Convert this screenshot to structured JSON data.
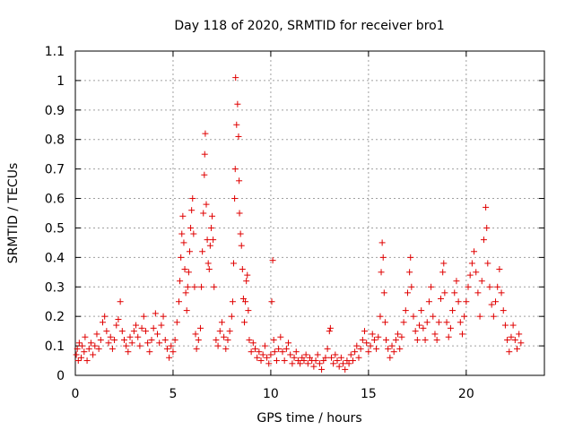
{
  "chart_data": {
    "type": "scatter",
    "title": "Day 118 of 2020, SRMTID for receiver bro1",
    "xlabel": "GPS time / hours",
    "ylabel": "SRMTID / TECUs",
    "xlim": [
      0,
      24
    ],
    "ylim": [
      0,
      1.1
    ],
    "xticks": [
      0,
      5,
      10,
      15,
      20
    ],
    "yticks": [
      0,
      0.1,
      0.2,
      0.3,
      0.4,
      0.5,
      0.6,
      0.7,
      0.8,
      0.9,
      1,
      1.1
    ],
    "grid": true,
    "marker": "+",
    "color": "#e00000",
    "series": [
      {
        "name": "SRMTID",
        "points": [
          [
            0.05,
            0.07
          ],
          [
            0.1,
            0.09
          ],
          [
            0.15,
            0.05
          ],
          [
            0.2,
            0.11
          ],
          [
            0.3,
            0.06
          ],
          [
            0.35,
            0.1
          ],
          [
            0.45,
            0.08
          ],
          [
            0.5,
            0.13
          ],
          [
            0.6,
            0.05
          ],
          [
            0.7,
            0.09
          ],
          [
            0.8,
            0.11
          ],
          [
            0.9,
            0.07
          ],
          [
            1.0,
            0.1
          ],
          [
            1.1,
            0.14
          ],
          [
            1.2,
            0.09
          ],
          [
            1.3,
            0.12
          ],
          [
            1.4,
            0.18
          ],
          [
            1.5,
            0.2
          ],
          [
            1.6,
            0.15
          ],
          [
            1.7,
            0.11
          ],
          [
            1.8,
            0.13
          ],
          [
            1.9,
            0.09
          ],
          [
            2.0,
            0.12
          ],
          [
            2.1,
            0.17
          ],
          [
            2.2,
            0.19
          ],
          [
            2.3,
            0.25
          ],
          [
            2.4,
            0.15
          ],
          [
            2.5,
            0.12
          ],
          [
            2.6,
            0.1
          ],
          [
            2.7,
            0.08
          ],
          [
            2.8,
            0.13
          ],
          [
            2.9,
            0.11
          ],
          [
            3.0,
            0.15
          ],
          [
            3.1,
            0.17
          ],
          [
            3.2,
            0.13
          ],
          [
            3.3,
            0.1
          ],
          [
            3.4,
            0.16
          ],
          [
            3.5,
            0.2
          ],
          [
            3.6,
            0.15
          ],
          [
            3.7,
            0.11
          ],
          [
            3.8,
            0.08
          ],
          [
            3.9,
            0.12
          ],
          [
            4.0,
            0.16
          ],
          [
            4.1,
            0.21
          ],
          [
            4.2,
            0.14
          ],
          [
            4.3,
            0.11
          ],
          [
            4.4,
            0.17
          ],
          [
            4.5,
            0.2
          ],
          [
            4.6,
            0.12
          ],
          [
            4.7,
            0.09
          ],
          [
            4.8,
            0.06
          ],
          [
            4.9,
            0.1
          ],
          [
            5.0,
            0.08
          ],
          [
            5.1,
            0.12
          ],
          [
            5.2,
            0.18
          ],
          [
            5.3,
            0.25
          ],
          [
            5.35,
            0.32
          ],
          [
            5.4,
            0.4
          ],
          [
            5.45,
            0.48
          ],
          [
            5.5,
            0.54
          ],
          [
            5.55,
            0.45
          ],
          [
            5.6,
            0.36
          ],
          [
            5.65,
            0.28
          ],
          [
            5.7,
            0.22
          ],
          [
            5.75,
            0.3
          ],
          [
            5.8,
            0.35
          ],
          [
            5.85,
            0.42
          ],
          [
            5.9,
            0.5
          ],
          [
            5.95,
            0.56
          ],
          [
            6.0,
            0.6
          ],
          [
            6.05,
            0.48
          ],
          [
            6.1,
            0.3
          ],
          [
            6.15,
            0.14
          ],
          [
            6.2,
            0.09
          ],
          [
            6.3,
            0.12
          ],
          [
            6.4,
            0.16
          ],
          [
            6.45,
            0.3
          ],
          [
            6.5,
            0.42
          ],
          [
            6.55,
            0.55
          ],
          [
            6.6,
            0.68
          ],
          [
            6.62,
            0.75
          ],
          [
            6.65,
            0.82
          ],
          [
            6.7,
            0.58
          ],
          [
            6.75,
            0.46
          ],
          [
            6.8,
            0.38
          ],
          [
            6.85,
            0.36
          ],
          [
            6.9,
            0.44
          ],
          [
            6.95,
            0.5
          ],
          [
            7.0,
            0.54
          ],
          [
            7.05,
            0.46
          ],
          [
            7.1,
            0.3
          ],
          [
            7.2,
            0.12
          ],
          [
            7.3,
            0.1
          ],
          [
            7.4,
            0.15
          ],
          [
            7.5,
            0.18
          ],
          [
            7.6,
            0.13
          ],
          [
            7.7,
            0.09
          ],
          [
            7.8,
            0.12
          ],
          [
            7.9,
            0.15
          ],
          [
            8.0,
            0.2
          ],
          [
            8.05,
            0.25
          ],
          [
            8.1,
            0.38
          ],
          [
            8.15,
            0.6
          ],
          [
            8.18,
            0.7
          ],
          [
            8.2,
            1.01
          ],
          [
            8.25,
            0.85
          ],
          [
            8.3,
            0.92
          ],
          [
            8.35,
            0.81
          ],
          [
            8.38,
            0.66
          ],
          [
            8.4,
            0.55
          ],
          [
            8.45,
            0.48
          ],
          [
            8.5,
            0.44
          ],
          [
            8.55,
            0.36
          ],
          [
            8.6,
            0.26
          ],
          [
            8.65,
            0.18
          ],
          [
            8.7,
            0.25
          ],
          [
            8.75,
            0.32
          ],
          [
            8.8,
            0.34
          ],
          [
            8.85,
            0.22
          ],
          [
            8.9,
            0.12
          ],
          [
            9.0,
            0.08
          ],
          [
            9.1,
            0.11
          ],
          [
            9.2,
            0.09
          ],
          [
            9.3,
            0.06
          ],
          [
            9.4,
            0.08
          ],
          [
            9.5,
            0.05
          ],
          [
            9.6,
            0.07
          ],
          [
            9.7,
            0.1
          ],
          [
            9.8,
            0.06
          ],
          [
            9.9,
            0.04
          ],
          [
            10.0,
            0.07
          ],
          [
            10.05,
            0.25
          ],
          [
            10.1,
            0.39
          ],
          [
            10.15,
            0.12
          ],
          [
            10.2,
            0.08
          ],
          [
            10.3,
            0.05
          ],
          [
            10.4,
            0.09
          ],
          [
            10.5,
            0.13
          ],
          [
            10.6,
            0.08
          ],
          [
            10.7,
            0.05
          ],
          [
            10.8,
            0.09
          ],
          [
            10.9,
            0.11
          ],
          [
            11.0,
            0.07
          ],
          [
            11.1,
            0.04
          ],
          [
            11.2,
            0.06
          ],
          [
            11.3,
            0.08
          ],
          [
            11.4,
            0.05
          ],
          [
            11.5,
            0.04
          ],
          [
            11.6,
            0.06
          ],
          [
            11.7,
            0.05
          ],
          [
            11.8,
            0.07
          ],
          [
            11.9,
            0.04
          ],
          [
            12.0,
            0.06
          ],
          [
            12.1,
            0.05
          ],
          [
            12.2,
            0.03
          ],
          [
            12.3,
            0.05
          ],
          [
            12.4,
            0.07
          ],
          [
            12.5,
            0.04
          ],
          [
            12.6,
            0.02
          ],
          [
            12.7,
            0.05
          ],
          [
            12.8,
            0.06
          ],
          [
            12.9,
            0.09
          ],
          [
            13.0,
            0.15
          ],
          [
            13.05,
            0.16
          ],
          [
            13.1,
            0.06
          ],
          [
            13.2,
            0.04
          ],
          [
            13.3,
            0.07
          ],
          [
            13.4,
            0.05
          ],
          [
            13.5,
            0.03
          ],
          [
            13.6,
            0.06
          ],
          [
            13.7,
            0.04
          ],
          [
            13.8,
            0.02
          ],
          [
            13.9,
            0.05
          ],
          [
            14.0,
            0.04
          ],
          [
            14.1,
            0.07
          ],
          [
            14.2,
            0.05
          ],
          [
            14.3,
            0.08
          ],
          [
            14.4,
            0.1
          ],
          [
            14.5,
            0.06
          ],
          [
            14.6,
            0.09
          ],
          [
            14.7,
            0.12
          ],
          [
            14.8,
            0.15
          ],
          [
            14.9,
            0.11
          ],
          [
            15.0,
            0.08
          ],
          [
            15.1,
            0.1
          ],
          [
            15.2,
            0.14
          ],
          [
            15.3,
            0.12
          ],
          [
            15.4,
            0.09
          ],
          [
            15.5,
            0.13
          ],
          [
            15.6,
            0.2
          ],
          [
            15.65,
            0.35
          ],
          [
            15.7,
            0.45
          ],
          [
            15.75,
            0.4
          ],
          [
            15.8,
            0.28
          ],
          [
            15.85,
            0.18
          ],
          [
            15.9,
            0.12
          ],
          [
            16.0,
            0.09
          ],
          [
            16.1,
            0.06
          ],
          [
            16.2,
            0.1
          ],
          [
            16.3,
            0.08
          ],
          [
            16.4,
            0.12
          ],
          [
            16.5,
            0.14
          ],
          [
            16.6,
            0.09
          ],
          [
            16.7,
            0.13
          ],
          [
            16.8,
            0.18
          ],
          [
            16.9,
            0.22
          ],
          [
            17.0,
            0.28
          ],
          [
            17.1,
            0.35
          ],
          [
            17.15,
            0.4
          ],
          [
            17.2,
            0.3
          ],
          [
            17.3,
            0.2
          ],
          [
            17.4,
            0.15
          ],
          [
            17.5,
            0.12
          ],
          [
            17.6,
            0.17
          ],
          [
            17.7,
            0.22
          ],
          [
            17.8,
            0.16
          ],
          [
            17.9,
            0.12
          ],
          [
            18.0,
            0.18
          ],
          [
            18.1,
            0.25
          ],
          [
            18.2,
            0.3
          ],
          [
            18.3,
            0.2
          ],
          [
            18.4,
            0.14
          ],
          [
            18.5,
            0.12
          ],
          [
            18.6,
            0.18
          ],
          [
            18.7,
            0.26
          ],
          [
            18.8,
            0.35
          ],
          [
            18.85,
            0.38
          ],
          [
            18.9,
            0.28
          ],
          [
            19.0,
            0.18
          ],
          [
            19.1,
            0.13
          ],
          [
            19.2,
            0.16
          ],
          [
            19.3,
            0.22
          ],
          [
            19.4,
            0.28
          ],
          [
            19.5,
            0.32
          ],
          [
            19.6,
            0.25
          ],
          [
            19.7,
            0.18
          ],
          [
            19.8,
            0.14
          ],
          [
            19.9,
            0.2
          ],
          [
            20.0,
            0.25
          ],
          [
            20.1,
            0.3
          ],
          [
            20.2,
            0.34
          ],
          [
            20.3,
            0.38
          ],
          [
            20.4,
            0.42
          ],
          [
            20.5,
            0.35
          ],
          [
            20.6,
            0.28
          ],
          [
            20.7,
            0.2
          ],
          [
            20.8,
            0.32
          ],
          [
            20.9,
            0.46
          ],
          [
            21.0,
            0.57
          ],
          [
            21.05,
            0.5
          ],
          [
            21.1,
            0.38
          ],
          [
            21.2,
            0.3
          ],
          [
            21.3,
            0.24
          ],
          [
            21.4,
            0.2
          ],
          [
            21.5,
            0.25
          ],
          [
            21.6,
            0.3
          ],
          [
            21.7,
            0.36
          ],
          [
            21.8,
            0.28
          ],
          [
            21.9,
            0.22
          ],
          [
            22.0,
            0.17
          ],
          [
            22.1,
            0.12
          ],
          [
            22.2,
            0.08
          ],
          [
            22.3,
            0.13
          ],
          [
            22.4,
            0.17
          ],
          [
            22.5,
            0.12
          ],
          [
            22.6,
            0.09
          ],
          [
            22.7,
            0.14
          ],
          [
            22.8,
            0.11
          ]
        ]
      }
    ]
  }
}
